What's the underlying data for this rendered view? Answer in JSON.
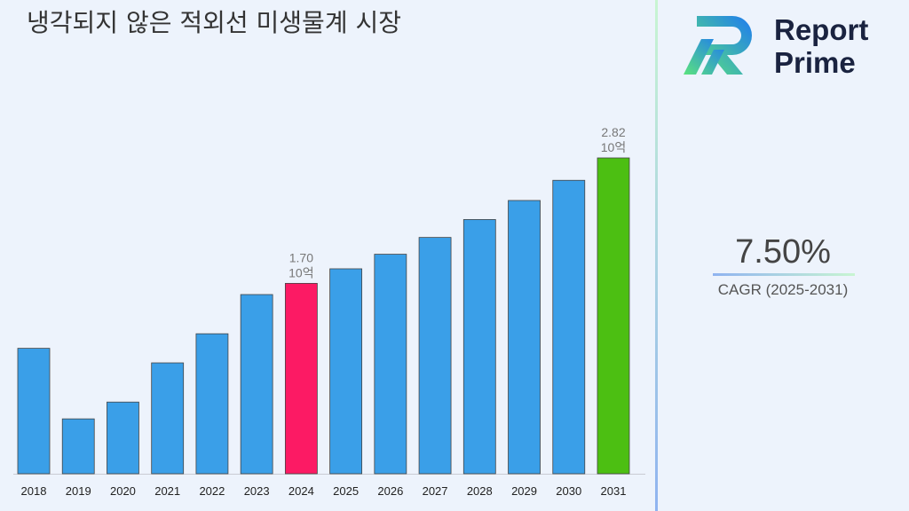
{
  "chart_data": {
    "type": "bar",
    "title": "냉각되지 않은 적외선 미생물계 시장",
    "categories": [
      "2018",
      "2019",
      "2020",
      "2021",
      "2022",
      "2023",
      "2024",
      "2025",
      "2026",
      "2027",
      "2028",
      "2029",
      "2030",
      "2031"
    ],
    "values": [
      1.12,
      0.49,
      0.64,
      0.99,
      1.25,
      1.6,
      1.7,
      1.83,
      1.96,
      2.11,
      2.27,
      2.44,
      2.62,
      2.82
    ],
    "value_labels": [
      null,
      null,
      null,
      null,
      null,
      null,
      "1.70",
      null,
      null,
      null,
      null,
      null,
      null,
      "2.82"
    ],
    "value_unit": "10억",
    "colors": [
      "#3a9fe8",
      "#3a9fe8",
      "#3a9fe8",
      "#3a9fe8",
      "#3a9fe8",
      "#3a9fe8",
      "#fc1a64",
      "#3a9fe8",
      "#3a9fe8",
      "#3a9fe8",
      "#3a9fe8",
      "#3a9fe8",
      "#3a9fe8",
      "#4cbf12"
    ]
  },
  "cagr": {
    "value": "7.50%",
    "label": "CAGR (2025-2031)"
  },
  "logo": {
    "line1": "Report",
    "line2": "Prime"
  }
}
